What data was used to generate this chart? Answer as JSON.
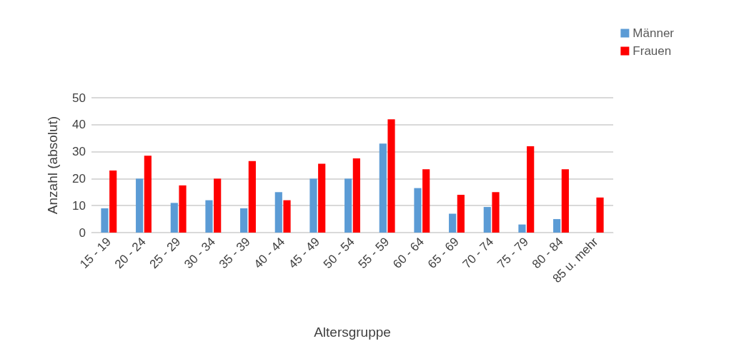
{
  "chart_data": {
    "type": "bar",
    "xlabel": "Altersgruppe",
    "ylabel": "Anzahl (absolut)",
    "categories": [
      "15 - 19",
      "20 - 24",
      "25 - 29",
      "30 - 34",
      "35 - 39",
      "40 - 44",
      "45 - 49",
      "50 - 54",
      "55 - 59",
      "60 - 64",
      "65 - 69",
      "70 - 74",
      "75 - 79",
      "80 - 84",
      "85 u. mehr"
    ],
    "series": [
      {
        "name": "Männer",
        "color": "#5b9bd5",
        "values": [
          9,
          20,
          11,
          12,
          9,
          15,
          20,
          20,
          33,
          16.5,
          7,
          9.5,
          3,
          5,
          0
        ]
      },
      {
        "name": "Frauen",
        "color": "#ff0000",
        "values": [
          23,
          28.5,
          17.5,
          20,
          26.5,
          12,
          25.5,
          27.5,
          42,
          23.5,
          14,
          15,
          32,
          23.5,
          13
        ]
      }
    ],
    "ylim": [
      0,
      50
    ],
    "yticks": [
      0,
      10,
      20,
      30,
      40,
      50
    ],
    "grid": "y",
    "legend": "top right"
  }
}
